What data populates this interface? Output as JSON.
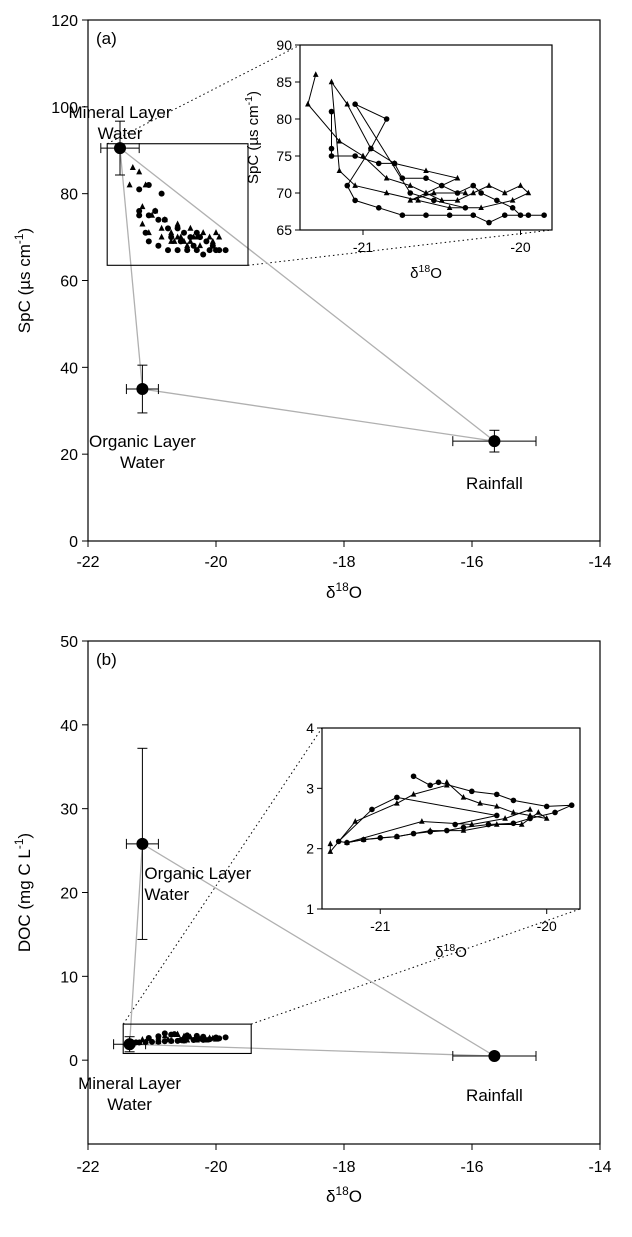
{
  "charts": [
    {
      "type": "scatter",
      "panel_label": "(a)",
      "xlabel": "δ18O",
      "ylabel": "SpC (µs cm-1)",
      "xlim": [
        -22,
        -14
      ],
      "ylim": [
        0,
        120
      ],
      "xticks": [
        "-22",
        "-20",
        "-18",
        "-16",
        "-14"
      ],
      "yticks": [
        "0",
        "20",
        "40",
        "60",
        "80",
        "100",
        "120"
      ],
      "endmembers": [
        {
          "label_lines": [
            "Mineral Layer",
            "Water"
          ],
          "x": -21.5,
          "y": 90.5,
          "xerr": 0.3,
          "yerr": 6.2
        },
        {
          "label_lines": [
            "Organic Layer",
            "Water"
          ],
          "x": -21.15,
          "y": 35,
          "xerr": 0.25,
          "yerr": 5.5
        },
        {
          "label_lines": [
            "Rainfall"
          ],
          "x": -15.65,
          "y": 23,
          "xerr": 0.65,
          "yerr": 2.5
        }
      ],
      "box": {
        "x": [
          -21.7,
          -19.5
        ],
        "y": [
          63.5,
          91.5
        ]
      },
      "series": [
        {
          "marker": "triangle",
          "points": [
            [
              -21.3,
              86
            ],
            [
              -21.35,
              82
            ],
            [
              -21.15,
              77
            ],
            [
              -21.0,
              75
            ],
            [
              -20.85,
              72
            ],
            [
              -20.7,
              71
            ],
            [
              -20.6,
              70
            ],
            [
              -20.5,
              69
            ],
            [
              -20.4,
              69
            ],
            [
              -20.3,
              70
            ],
            [
              -20.2,
              71
            ],
            [
              -20.1,
              70
            ],
            [
              -20.0,
              71
            ],
            [
              -19.95,
              70
            ],
            [
              -20.05,
              69
            ],
            [
              -20.25,
              68
            ],
            [
              -20.45,
              68
            ],
            [
              -20.65,
              69
            ],
            [
              -20.85,
              70
            ],
            [
              -21.05,
              71
            ],
            [
              -21.15,
              73
            ],
            [
              -21.2,
              85
            ],
            [
              -21.1,
              82
            ],
            [
              -20.95,
              76
            ],
            [
              -20.8,
              74
            ],
            [
              -20.6,
              73
            ],
            [
              -20.4,
              72
            ],
            [
              -20.7,
              69
            ],
            [
              -20.55,
              70
            ],
            [
              -20.35,
              70
            ]
          ]
        },
        {
          "marker": "circle",
          "points": [
            [
              -21.2,
              81
            ],
            [
              -21.2,
              76
            ],
            [
              -21.2,
              75
            ],
            [
              -21.05,
              75
            ],
            [
              -20.9,
              74
            ],
            [
              -20.8,
              74
            ],
            [
              -20.75,
              72
            ],
            [
              -20.6,
              72
            ],
            [
              -20.5,
              71
            ],
            [
              -20.4,
              70
            ],
            [
              -20.3,
              71
            ],
            [
              -20.25,
              70
            ],
            [
              -20.15,
              69
            ],
            [
              -20.05,
              68
            ],
            [
              -20.0,
              67
            ],
            [
              -19.95,
              67
            ],
            [
              -19.85,
              67
            ],
            [
              -20.1,
              67
            ],
            [
              -20.2,
              66
            ],
            [
              -20.3,
              67
            ],
            [
              -20.45,
              67
            ],
            [
              -20.6,
              67
            ],
            [
              -20.75,
              67
            ],
            [
              -20.9,
              68
            ],
            [
              -21.05,
              69
            ],
            [
              -21.1,
              71
            ],
            [
              -20.95,
              76
            ],
            [
              -20.85,
              80
            ],
            [
              -21.05,
              82
            ],
            [
              -20.7,
              70
            ],
            [
              -20.55,
              69
            ],
            [
              -20.35,
              68
            ]
          ]
        }
      ],
      "inset": {
        "xlim": [
          -21.4,
          -19.8
        ],
        "ylim": [
          65,
          90
        ],
        "xticks": [
          "-21",
          "-20"
        ],
        "yticks": [
          "65",
          "70",
          "75",
          "80",
          "85",
          "90"
        ],
        "xlabel": "δ18O",
        "ylabel": "SpC (µs cm-1)"
      }
    },
    {
      "type": "scatter",
      "panel_label": "(b)",
      "xlabel": "δ18O",
      "ylabel": "DOC (mg C L-1)",
      "xlim": [
        -22,
        -14
      ],
      "ylim": [
        -10,
        50
      ],
      "xticks": [
        "-22",
        "-20",
        "-18",
        "-16",
        "-14"
      ],
      "yticks": [
        "0",
        "10",
        "20",
        "30",
        "40",
        "50"
      ],
      "endmembers": [
        {
          "label_lines": [
            "Organic Layer",
            "Water"
          ],
          "x": -21.15,
          "y": 25.8,
          "xerr": 0.25,
          "yerr": 11.4
        },
        {
          "label_lines": [
            "Mineral Layer",
            "Water"
          ],
          "x": -21.35,
          "y": 1.9,
          "xerr": 0.25,
          "yerr": 0.9
        },
        {
          "label_lines": [
            "Rainfall"
          ],
          "x": -15.65,
          "y": 0.5,
          "xerr": 0.65,
          "yerr": 0.3
        }
      ],
      "box": {
        "x": [
          -21.45,
          -19.45
        ],
        "y": [
          0.8,
          4.3
        ]
      },
      "series": [
        {
          "marker": "triangle",
          "points": [
            [
              -21.3,
              2.08
            ],
            [
              -21.3,
              1.95
            ],
            [
              -21.15,
              2.45
            ],
            [
              -20.9,
              2.75
            ],
            [
              -20.8,
              2.9
            ],
            [
              -20.6,
              3.05
            ],
            [
              -20.6,
              3.1
            ],
            [
              -20.5,
              2.85
            ],
            [
              -20.4,
              2.75
            ],
            [
              -20.3,
              2.7
            ],
            [
              -20.2,
              2.6
            ],
            [
              -20.1,
              2.55
            ],
            [
              -20.0,
              2.5
            ],
            [
              -20.05,
              2.6
            ],
            [
              -20.15,
              2.4
            ],
            [
              -20.3,
              2.4
            ],
            [
              -20.5,
              2.3
            ],
            [
              -20.7,
              2.3
            ],
            [
              -20.9,
              2.2
            ],
            [
              -21.1,
              2.15
            ],
            [
              -21.2,
              2.1
            ],
            [
              -20.75,
              2.45
            ],
            [
              -20.45,
              2.4
            ],
            [
              -20.25,
              2.5
            ],
            [
              -20.1,
              2.65
            ]
          ]
        },
        {
          "marker": "circle",
          "points": [
            [
              -20.8,
              3.2
            ],
            [
              -20.7,
              3.05
            ],
            [
              -20.65,
              3.1
            ],
            [
              -20.45,
              2.95
            ],
            [
              -20.3,
              2.9
            ],
            [
              -20.2,
              2.8
            ],
            [
              -20.0,
              2.7
            ],
            [
              -19.85,
              2.72
            ],
            [
              -19.95,
              2.6
            ],
            [
              -20.1,
              2.5
            ],
            [
              -20.2,
              2.42
            ],
            [
              -20.35,
              2.4
            ],
            [
              -20.5,
              2.35
            ],
            [
              -20.6,
              2.3
            ],
            [
              -20.7,
              2.28
            ],
            [
              -20.8,
              2.25
            ],
            [
              -20.9,
              2.2
            ],
            [
              -21.0,
              2.18
            ],
            [
              -21.1,
              2.15
            ],
            [
              -21.2,
              2.1
            ],
            [
              -21.25,
              2.12
            ],
            [
              -21.05,
              2.65
            ],
            [
              -20.9,
              2.85
            ],
            [
              -20.3,
              2.55
            ],
            [
              -20.55,
              2.4
            ]
          ]
        }
      ],
      "inset": {
        "xlim": [
          -21.35,
          -19.8
        ],
        "ylim": [
          1,
          4
        ],
        "xticks": [
          "-21",
          "-20"
        ],
        "yticks": [
          "1",
          "2",
          "3",
          "4"
        ],
        "xlabel": "δ18O",
        "ylabel": ""
      }
    }
  ]
}
